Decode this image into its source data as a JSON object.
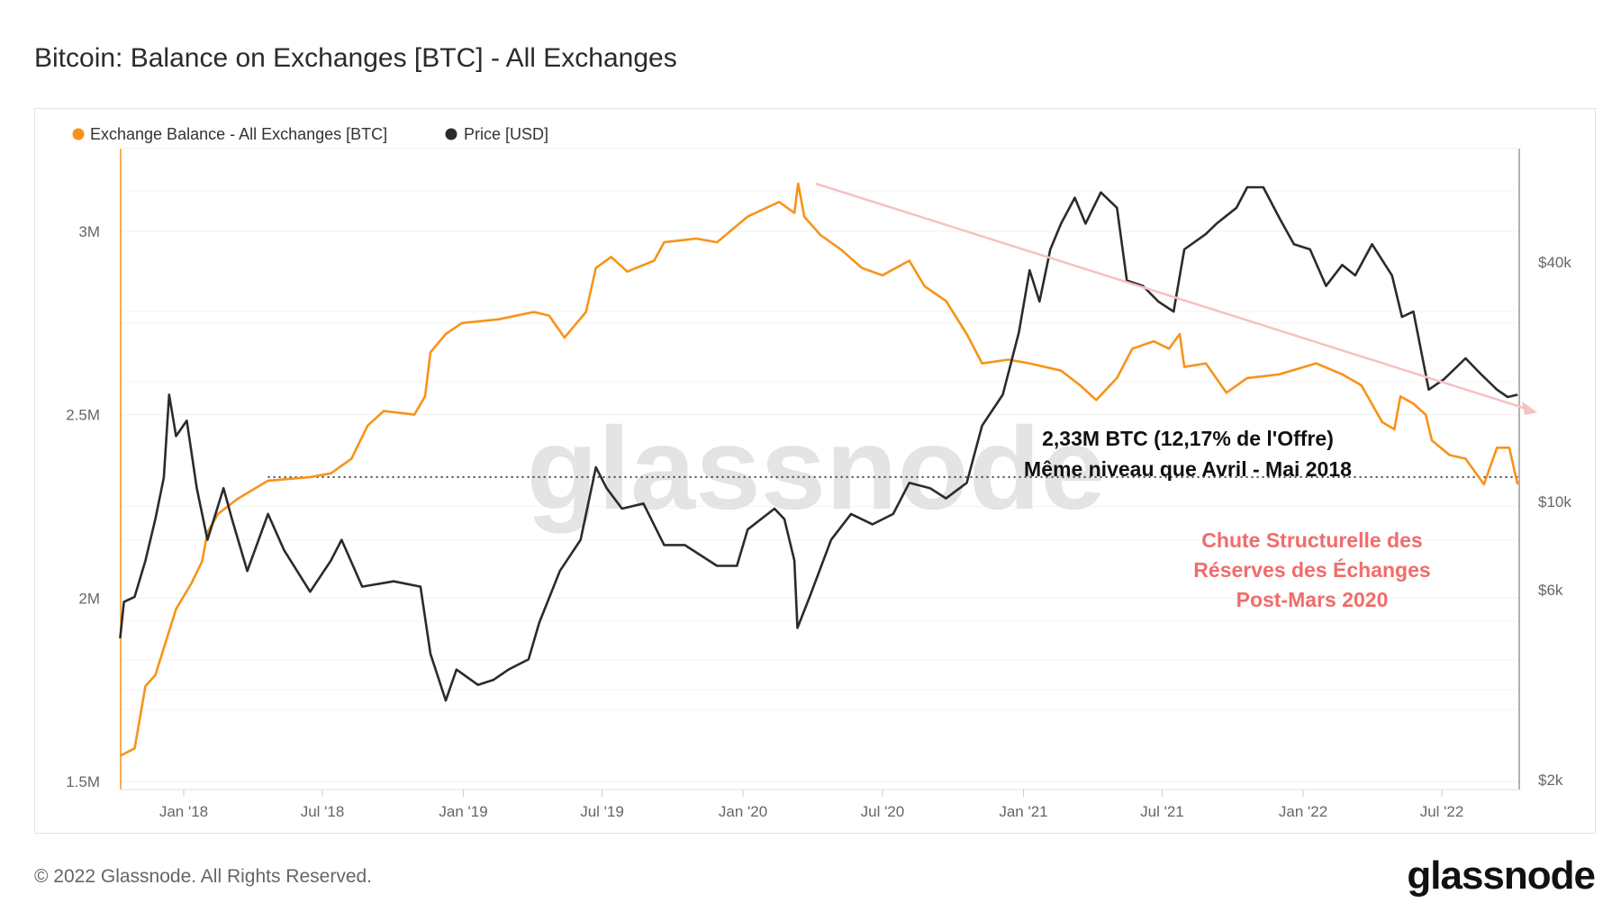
{
  "title": "Bitcoin: Balance on Exchanges [BTC] - All Exchanges",
  "footer": "© 2022 Glassnode. All Rights Reserved.",
  "logo": "glassnode",
  "watermark": "glassnode",
  "colors": {
    "balance": "#f7931a",
    "price": "#2b2b2b",
    "trend_arrow": "#f4c2c2",
    "annotation_red": "#f26b6b"
  },
  "chart_data": {
    "type": "line",
    "title": "Bitcoin: Balance on Exchanges [BTC] - All Exchanges",
    "legend_position": "top-left",
    "grid": true,
    "x_ticks": [
      "Jan '18",
      "Jul '18",
      "Jan '19",
      "Jul '19",
      "Jan '20",
      "Jul '20",
      "Jan '21",
      "Jul '21",
      "Jan '22",
      "Jul '22"
    ],
    "x_tick_dates": [
      "2018-01-01",
      "2018-07-01",
      "2019-01-01",
      "2019-07-01",
      "2020-01-01",
      "2020-07-01",
      "2021-01-01",
      "2021-07-01",
      "2022-01-01",
      "2022-07-01"
    ],
    "xlim": [
      "2017-10-10",
      "2022-10-08"
    ],
    "y_left": {
      "ticks": [
        "1.5M",
        "2M",
        "2.5M",
        "3M"
      ],
      "tick_values": [
        1.5,
        2,
        2.5,
        3
      ],
      "unit": "M BTC",
      "range": [
        1.48,
        3.22
      ]
    },
    "y_right": {
      "ticks": [
        "$2k",
        "$6k",
        "$10k",
        "$40k"
      ],
      "tick_values": [
        2000,
        6000,
        10000,
        40000
      ],
      "scale": "log",
      "range": [
        1890,
        77000
      ]
    },
    "series": [
      {
        "name": "Exchange Balance - All Exchanges [BTC]",
        "axis": "left",
        "unit": "M BTC",
        "points": [
          [
            "2017-10-10",
            1.57
          ],
          [
            "2017-10-29",
            1.59
          ],
          [
            "2017-11-12",
            1.76
          ],
          [
            "2017-11-25",
            1.79
          ],
          [
            "2017-12-22",
            1.97
          ],
          [
            "2018-01-11",
            2.04
          ],
          [
            "2018-01-25",
            2.1
          ],
          [
            "2018-02-01",
            2.18
          ],
          [
            "2018-02-15",
            2.23
          ],
          [
            "2018-03-12",
            2.27
          ],
          [
            "2018-04-21",
            2.32
          ],
          [
            "2018-06-15",
            2.33
          ],
          [
            "2018-07-12",
            2.34
          ],
          [
            "2018-08-08",
            2.38
          ],
          [
            "2018-08-29",
            2.47
          ],
          [
            "2018-09-19",
            2.51
          ],
          [
            "2018-10-29",
            2.5
          ],
          [
            "2018-11-12",
            2.55
          ],
          [
            "2018-11-19",
            2.67
          ],
          [
            "2018-12-09",
            2.72
          ],
          [
            "2018-12-30",
            2.75
          ],
          [
            "2019-02-16",
            2.76
          ],
          [
            "2019-04-03",
            2.78
          ],
          [
            "2019-04-23",
            2.77
          ],
          [
            "2019-05-13",
            2.71
          ],
          [
            "2019-06-10",
            2.78
          ],
          [
            "2019-06-23",
            2.9
          ],
          [
            "2019-07-13",
            2.93
          ],
          [
            "2019-08-03",
            2.89
          ],
          [
            "2019-09-07",
            2.92
          ],
          [
            "2019-09-20",
            2.97
          ],
          [
            "2019-11-01",
            2.98
          ],
          [
            "2019-11-28",
            2.97
          ],
          [
            "2020-01-07",
            3.04
          ],
          [
            "2020-02-17",
            3.08
          ],
          [
            "2020-03-08",
            3.05
          ],
          [
            "2020-03-13",
            3.13
          ],
          [
            "2020-03-21",
            3.04
          ],
          [
            "2020-04-11",
            2.99
          ],
          [
            "2020-05-08",
            2.95
          ],
          [
            "2020-06-04",
            2.9
          ],
          [
            "2020-07-01",
            2.88
          ],
          [
            "2020-08-05",
            2.92
          ],
          [
            "2020-08-25",
            2.85
          ],
          [
            "2020-09-22",
            2.81
          ],
          [
            "2020-10-19",
            2.72
          ],
          [
            "2020-11-08",
            2.64
          ],
          [
            "2020-12-12",
            2.65
          ],
          [
            "2021-01-09",
            2.64
          ],
          [
            "2021-02-19",
            2.62
          ],
          [
            "2021-03-16",
            2.58
          ],
          [
            "2021-04-06",
            2.54
          ],
          [
            "2021-05-03",
            2.6
          ],
          [
            "2021-05-23",
            2.68
          ],
          [
            "2021-06-20",
            2.7
          ],
          [
            "2021-07-10",
            2.68
          ],
          [
            "2021-07-24",
            2.72
          ],
          [
            "2021-07-30",
            2.63
          ],
          [
            "2021-08-27",
            2.64
          ],
          [
            "2021-09-23",
            2.56
          ],
          [
            "2021-10-20",
            2.6
          ],
          [
            "2021-12-01",
            2.61
          ],
          [
            "2022-01-18",
            2.64
          ],
          [
            "2022-02-21",
            2.61
          ],
          [
            "2022-03-18",
            2.58
          ],
          [
            "2022-04-14",
            2.48
          ],
          [
            "2022-04-30",
            2.46
          ],
          [
            "2022-05-08",
            2.55
          ],
          [
            "2022-05-25",
            2.53
          ],
          [
            "2022-06-10",
            2.5
          ],
          [
            "2022-06-18",
            2.43
          ],
          [
            "2022-07-11",
            2.39
          ],
          [
            "2022-08-01",
            2.38
          ],
          [
            "2022-08-25",
            2.31
          ],
          [
            "2022-09-11",
            2.41
          ],
          [
            "2022-09-27",
            2.41
          ],
          [
            "2022-10-08",
            2.31
          ]
        ]
      },
      {
        "name": "Price [USD]",
        "axis": "right",
        "unit": "USD",
        "points": [
          [
            "2017-10-10",
            4530
          ],
          [
            "2017-10-15",
            5590
          ],
          [
            "2017-10-29",
            5760
          ],
          [
            "2017-11-12",
            7100
          ],
          [
            "2017-11-25",
            9030
          ],
          [
            "2017-12-06",
            11480
          ],
          [
            "2017-12-13",
            18550
          ],
          [
            "2017-12-22",
            14600
          ],
          [
            "2018-01-05",
            15960
          ],
          [
            "2018-01-18",
            10800
          ],
          [
            "2018-02-01",
            8010
          ],
          [
            "2018-02-22",
            10800
          ],
          [
            "2018-03-05",
            9030
          ],
          [
            "2018-03-25",
            6690
          ],
          [
            "2018-04-21",
            9300
          ],
          [
            "2018-05-12",
            7540
          ],
          [
            "2018-06-15",
            5930
          ],
          [
            "2018-07-12",
            7100
          ],
          [
            "2018-07-26",
            8010
          ],
          [
            "2018-08-22",
            6110
          ],
          [
            "2018-10-02",
            6300
          ],
          [
            "2018-11-06",
            6110
          ],
          [
            "2018-11-19",
            4140
          ],
          [
            "2018-12-09",
            3160
          ],
          [
            "2018-12-23",
            3780
          ],
          [
            "2019-01-20",
            3460
          ],
          [
            "2019-02-09",
            3560
          ],
          [
            "2019-03-01",
            3780
          ],
          [
            "2019-03-27",
            4010
          ],
          [
            "2019-04-10",
            4960
          ],
          [
            "2019-05-07",
            6690
          ],
          [
            "2019-06-03",
            8010
          ],
          [
            "2019-06-23",
            12190
          ],
          [
            "2019-07-07",
            10800
          ],
          [
            "2019-07-27",
            9590
          ],
          [
            "2019-08-24",
            9880
          ],
          [
            "2019-09-20",
            7770
          ],
          [
            "2019-10-17",
            7770
          ],
          [
            "2019-11-28",
            6890
          ],
          [
            "2019-12-24",
            6890
          ],
          [
            "2020-01-07",
            8500
          ],
          [
            "2020-02-11",
            9590
          ],
          [
            "2020-02-24",
            9030
          ],
          [
            "2020-03-08",
            7100
          ],
          [
            "2020-03-12",
            4810
          ],
          [
            "2020-03-28",
            5760
          ],
          [
            "2020-04-25",
            8010
          ],
          [
            "2020-05-21",
            9300
          ],
          [
            "2020-06-18",
            8760
          ],
          [
            "2020-07-15",
            9300
          ],
          [
            "2020-08-05",
            11140
          ],
          [
            "2020-09-01",
            10800
          ],
          [
            "2020-09-22",
            10180
          ],
          [
            "2020-10-19",
            11140
          ],
          [
            "2020-11-08",
            15500
          ],
          [
            "2020-12-05",
            18550
          ],
          [
            "2020-12-26",
            26600
          ],
          [
            "2021-01-09",
            38100
          ],
          [
            "2021-01-22",
            31800
          ],
          [
            "2021-02-05",
            43000
          ],
          [
            "2021-02-19",
            49900
          ],
          [
            "2021-03-09",
            58000
          ],
          [
            "2021-03-23",
            49900
          ],
          [
            "2021-04-12",
            59800
          ],
          [
            "2021-05-03",
            54700
          ],
          [
            "2021-05-16",
            35900
          ],
          [
            "2021-06-06",
            34800
          ],
          [
            "2021-06-26",
            31800
          ],
          [
            "2021-07-16",
            30000
          ],
          [
            "2021-07-30",
            43000
          ],
          [
            "2021-08-27",
            47000
          ],
          [
            "2021-09-10",
            49900
          ],
          [
            "2021-10-06",
            54700
          ],
          [
            "2021-10-20",
            61600
          ],
          [
            "2021-11-10",
            61600
          ],
          [
            "2021-12-01",
            51600
          ],
          [
            "2021-12-20",
            44300
          ],
          [
            "2022-01-10",
            43000
          ],
          [
            "2022-01-31",
            34800
          ],
          [
            "2022-02-21",
            39300
          ],
          [
            "2022-03-10",
            37000
          ],
          [
            "2022-04-01",
            44300
          ],
          [
            "2022-04-27",
            37000
          ],
          [
            "2022-05-10",
            29100
          ],
          [
            "2022-05-25",
            30000
          ],
          [
            "2022-06-14",
            19100
          ],
          [
            "2022-07-04",
            20300
          ],
          [
            "2022-08-01",
            22900
          ],
          [
            "2022-08-21",
            20900
          ],
          [
            "2022-09-11",
            19100
          ],
          [
            "2022-09-25",
            18300
          ],
          [
            "2022-10-08",
            18550
          ]
        ]
      }
    ],
    "reference_line": {
      "value": 2.33,
      "unit": "M BTC",
      "style": "dotted",
      "from": "2018-04-21"
    },
    "annotations": {
      "level_line1": "2,33M BTC (12,17% de l'Offre)",
      "level_line2": "Même niveau que Avril - Mai 2018",
      "trend_line1": "Chute Structurelle des",
      "trend_line2": "Réserves des Échanges",
      "trend_line3": "Post-Mars 2020"
    }
  }
}
